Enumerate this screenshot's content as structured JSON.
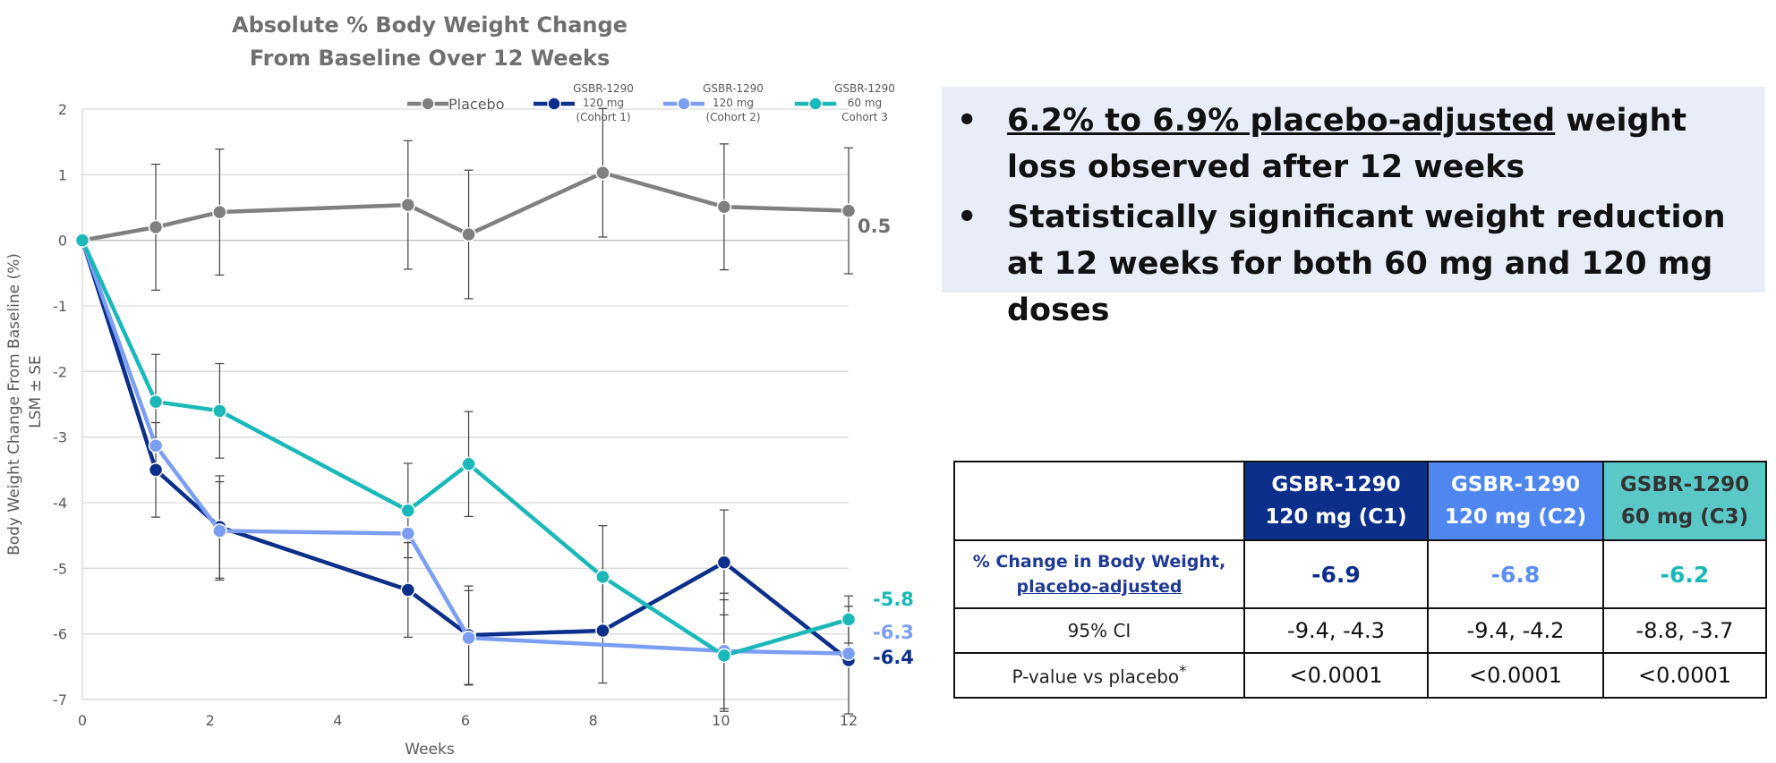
{
  "chart_data": {
    "type": "line",
    "title_lines": [
      "Absolute % Body Weight Change",
      "From Baseline Over 12 Weeks"
    ],
    "xlabel": "Weeks",
    "ylabel_lines": [
      "Body Weight Change From Baseline  (%)",
      "LSM ± SE"
    ],
    "xlim": [
      0,
      12
    ],
    "ylim": [
      -7,
      2
    ],
    "xticks": [
      0,
      2,
      4,
      6,
      8,
      10,
      12
    ],
    "yticks": [
      2,
      1,
      0,
      -1,
      -2,
      -3,
      -4,
      -5,
      -6,
      -7
    ],
    "grid": true,
    "legend_position": "top-right",
    "series": [
      {
        "name": "Placebo",
        "legend_lines": [
          "Placebo"
        ],
        "color": "#808080",
        "x": [
          0,
          1.15,
          2.15,
          5.1,
          6.05,
          8.15,
          10.05,
          12
        ],
        "y": [
          0,
          0.2,
          0.43,
          0.54,
          0.09,
          1.03,
          0.51,
          0.45
        ],
        "se": [
          0,
          0.96,
          0.96,
          0.98,
          0.98,
          0.98,
          0.96,
          0.96
        ],
        "end_label": "0.5"
      },
      {
        "name": "GSBR-1290 120 mg (Cohort 1)",
        "legend_lines": [
          "GSBR-1290",
          "120 mg",
          "(Cohort 1)"
        ],
        "color": "#0b2f8a",
        "x": [
          0,
          1.15,
          2.15,
          5.1,
          6.05,
          8.15,
          10.05,
          12
        ],
        "y": [
          0,
          -3.5,
          -4.37,
          -5.33,
          -6.02,
          -5.95,
          -4.91,
          -6.4
        ],
        "se": [
          0,
          0.72,
          0.78,
          0.72,
          0.75,
          0.8,
          0.8,
          0.82
        ],
        "end_label": "-6.4"
      },
      {
        "name": "GSBR-1290 120 mg (Cohort 2)",
        "legend_lines": [
          "GSBR-1290",
          "120 mg",
          "(Cohort 2)"
        ],
        "color": "#7b9ef2",
        "x": [
          0,
          1.15,
          2.15,
          5.1,
          6.05,
          10.05,
          12
        ],
        "y": [
          0,
          -3.13,
          -4.43,
          -4.47,
          -6.06,
          -6.26,
          -6.3
        ],
        "se": [
          0,
          0.0,
          0.75,
          0.0,
          0.72,
          0.88,
          0.0
        ],
        "end_label": "-6.3"
      },
      {
        "name": "GSBR-1290 60 mg Cohort 3",
        "legend_lines": [
          "GSBR-1290",
          "60 mg",
          "Cohort 3"
        ],
        "color": "#1ab8b8",
        "x": [
          0,
          1.15,
          2.15,
          5.1,
          6.05,
          8.15,
          10.05,
          12
        ],
        "y": [
          0,
          -2.46,
          -2.6,
          -4.12,
          -3.41,
          -5.13,
          -6.33,
          -5.78
        ],
        "se": [
          0,
          0.72,
          0.72,
          0.72,
          0.8,
          0.78,
          0.85,
          0.36
        ],
        "end_label": "-5.8"
      }
    ]
  },
  "bullets": [
    {
      "dot": "•",
      "underlined": "6.2% to 6.9% placebo-adjusted",
      "rest": " weight loss observed after 12 weeks"
    },
    {
      "dot": "•",
      "underlined": "",
      "rest": "Statistically significant weight reduction at 12 weeks for both 60 mg and 120 mg doses"
    }
  ],
  "table": {
    "headers": [
      {
        "line1": "GSBR-1290",
        "line2": "120 mg (C1)",
        "color": "#0b2f8a"
      },
      {
        "line1": "GSBR-1290",
        "line2": "120 mg (C2)",
        "color": "#4f86f0"
      },
      {
        "line1": "GSBR-1290",
        "line2": "60 mg (C3)",
        "color": "#5bc8c8"
      }
    ],
    "row1_label_line1": "% Change in Body Weight,",
    "row1_label_line2": "placebo-adjusted",
    "row1_values": [
      "-6.9",
      "-6.8",
      "-6.2"
    ],
    "row1_colors": [
      "#0b2f8a",
      "#5b8ef0",
      "#1ab8b8"
    ],
    "row2_label": "95% CI",
    "row2_values": [
      "-9.4, -4.3",
      "-9.4, -4.2",
      "-8.8, -3.7"
    ],
    "row3_label": "P-value vs placebo",
    "row3_label_sup": "*",
    "row3_values": [
      "<0.0001",
      "<0.0001",
      "<0.0001"
    ]
  }
}
